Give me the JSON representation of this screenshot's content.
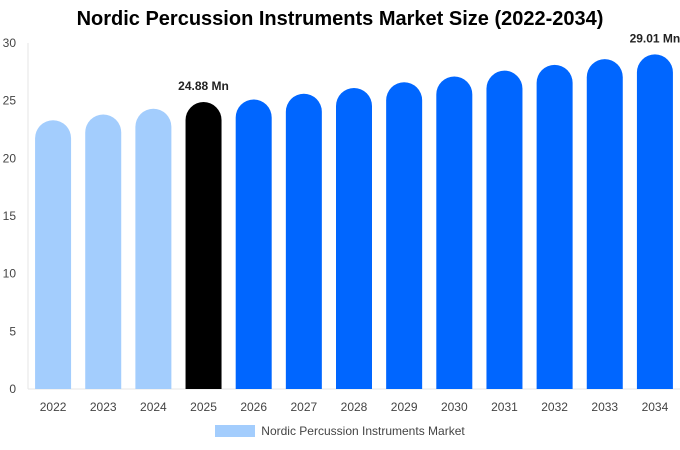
{
  "chart_data": {
    "type": "bar",
    "title": "Nordic Percussion Instruments Market Size (2022-2034)",
    "categories": [
      "2022",
      "2023",
      "2024",
      "2025",
      "2026",
      "2027",
      "2028",
      "2029",
      "2030",
      "2031",
      "2032",
      "2033",
      "2034"
    ],
    "series": [
      {
        "name": "Nordic Percussion Instruments Market",
        "values": [
          23.3,
          23.8,
          24.3,
          24.88,
          25.1,
          25.6,
          26.1,
          26.6,
          27.1,
          27.6,
          28.1,
          28.6,
          29.01
        ]
      }
    ],
    "ylim": [
      0,
      30
    ],
    "yticks": [
      "0",
      "5",
      "10",
      "15",
      "20",
      "25",
      "30"
    ],
    "data_labels": [
      {
        "category": "2025",
        "text": "24.88 Mn"
      },
      {
        "category": "2034",
        "text": "29.01 Mn"
      }
    ],
    "colors": {
      "historical": "#a3cdfd",
      "base_year": "#000000",
      "forecast": "#0066ff"
    },
    "bar_colors": [
      "historical",
      "historical",
      "historical",
      "base_year",
      "forecast",
      "forecast",
      "forecast",
      "forecast",
      "forecast",
      "forecast",
      "forecast",
      "forecast",
      "forecast"
    ],
    "legend_position": "bottom",
    "grid": false
  }
}
